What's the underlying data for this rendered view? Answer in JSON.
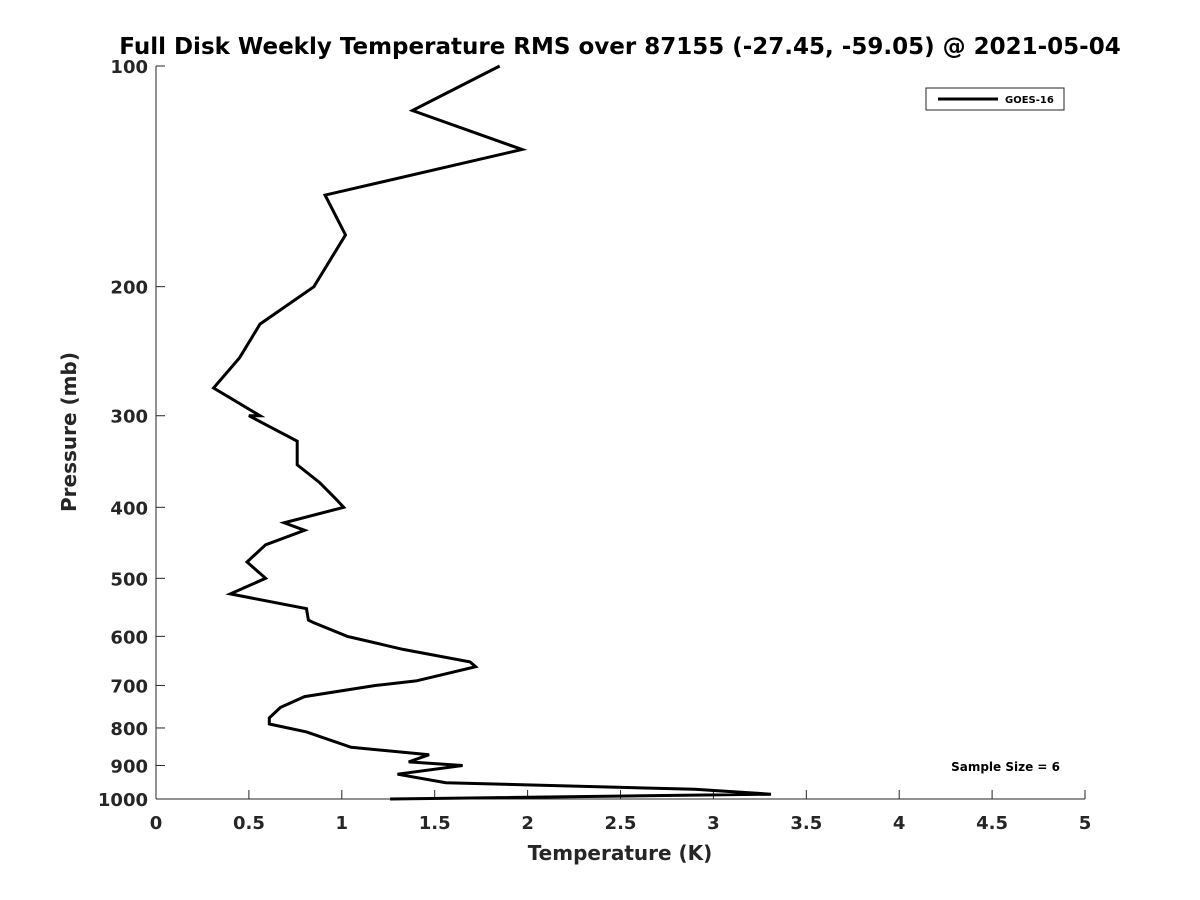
{
  "chart_data": {
    "type": "line",
    "title": "Full Disk Weekly Temperature RMS over 87155 (-27.45, -59.05) @ 2021-05-04",
    "xlabel": "Temperature (K)",
    "ylabel": "Pressure (mb)",
    "xlim": [
      0,
      5
    ],
    "ylim": [
      1000,
      100
    ],
    "y_scale": "log",
    "y_reversed": true,
    "x_ticks": [
      "0",
      "0.5",
      "1",
      "1.5",
      "2",
      "2.5",
      "3",
      "3.5",
      "4",
      "4.5",
      "5"
    ],
    "y_ticks": [
      "100",
      "200",
      "300",
      "400",
      "500",
      "600",
      "700",
      "800",
      "900",
      "1000"
    ],
    "legend_position": "top-right",
    "grid": false,
    "series": [
      {
        "name": "GOES-16",
        "color": "#000000",
        "x": [
          1.85,
          1.38,
          1.97,
          0.91,
          1.02,
          0.85,
          0.56,
          0.45,
          0.31,
          0.56,
          0.5,
          0.76,
          0.76,
          0.88,
          0.97,
          1.01,
          0.69,
          0.8,
          0.59,
          0.49,
          0.59,
          0.4,
          0.81,
          0.82,
          0.85,
          1.03,
          1.33,
          1.69,
          1.72,
          1.4,
          1.18,
          0.8,
          0.67,
          0.61,
          0.61,
          0.81,
          1.05,
          1.47,
          1.36,
          1.65,
          1.3,
          1.56,
          2.9,
          3.31,
          1.26
        ],
        "y": [
          100,
          115,
          130,
          150,
          170,
          200,
          225,
          250,
          275,
          300,
          300,
          325,
          350,
          370,
          390,
          400,
          420,
          430,
          450,
          475,
          500,
          525,
          550,
          570,
          575,
          600,
          625,
          650,
          660,
          690,
          700,
          725,
          750,
          775,
          790,
          810,
          850,
          870,
          890,
          900,
          925,
          950,
          970,
          985,
          1000
        ]
      }
    ],
    "annotation": "Sample Size = 6"
  }
}
